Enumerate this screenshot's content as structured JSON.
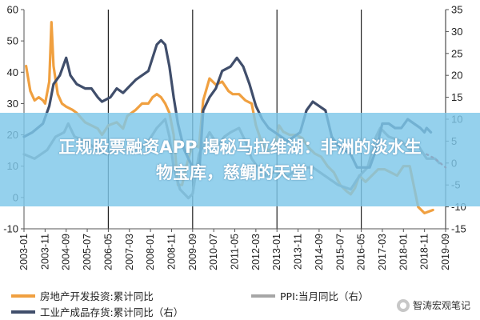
{
  "chart_data": {
    "type": "line",
    "title": "",
    "left_axis": {
      "min": -10,
      "max": 60,
      "ticks": [
        -10,
        0,
        10,
        20,
        30,
        40,
        50,
        60
      ]
    },
    "right_axis": {
      "min": -15,
      "max": 35,
      "ticks": [
        -15,
        -10,
        -5,
        0,
        5,
        10,
        15,
        20,
        25,
        30,
        35
      ]
    },
    "x_ticks": [
      "2003-01",
      "2003-11",
      "2004-09",
      "2005-07",
      "2006-05",
      "2007-03",
      "2008-01",
      "2008-11",
      "2009-09",
      "2010-07",
      "2011-05",
      "2012-03",
      "2013-01",
      "2013-11",
      "2014-09",
      "2015-07",
      "2016-05",
      "2017-03",
      "2018-01",
      "2018-11",
      "2019-09"
    ],
    "gridlines_x": [
      "2006-05",
      "2009-09",
      "2013-01",
      "2016-05",
      "2019-09"
    ],
    "series": [
      {
        "name": "房地产开发投资:累计同比",
        "axis": "left",
        "color": "#f0a040",
        "points": [
          [
            "2003-02",
            42
          ],
          [
            "2003-04",
            34
          ],
          [
            "2003-06",
            31
          ],
          [
            "2003-08",
            32
          ],
          [
            "2003-10",
            31
          ],
          [
            "2003-11",
            30
          ],
          [
            "2004-01",
            37
          ],
          [
            "2004-02",
            56
          ],
          [
            "2004-03",
            42
          ],
          [
            "2004-05",
            33
          ],
          [
            "2004-07",
            30
          ],
          [
            "2004-09",
            29
          ],
          [
            "2004-12",
            28
          ],
          [
            "2005-02",
            27
          ],
          [
            "2005-06",
            24
          ],
          [
            "2005-09",
            23
          ],
          [
            "2005-12",
            22
          ],
          [
            "2006-02",
            20
          ],
          [
            "2006-05",
            23
          ],
          [
            "2006-09",
            24
          ],
          [
            "2006-12",
            22
          ],
          [
            "2007-02",
            26
          ],
          [
            "2007-06",
            28
          ],
          [
            "2007-09",
            30
          ],
          [
            "2007-12",
            30
          ],
          [
            "2008-02",
            32
          ],
          [
            "2008-04",
            33
          ],
          [
            "2008-06",
            32
          ],
          [
            "2008-08",
            30
          ],
          [
            "2008-10",
            27
          ],
          [
            "2008-12",
            20
          ],
          [
            "2009-02",
            4
          ],
          [
            "2009-04",
            4
          ],
          [
            "2009-06",
            10
          ],
          [
            "2009-09",
            17
          ],
          [
            "2009-12",
            16
          ],
          [
            "2010-02",
            31
          ],
          [
            "2010-05",
            38
          ],
          [
            "2010-08",
            36
          ],
          [
            "2010-11",
            37
          ],
          [
            "2011-02",
            34
          ],
          [
            "2011-04",
            33
          ],
          [
            "2011-07",
            33
          ],
          [
            "2011-10",
            31
          ],
          [
            "2012-01",
            30
          ],
          [
            "2012-03",
            23
          ],
          [
            "2012-06",
            17
          ],
          [
            "2012-09",
            15
          ],
          [
            "2012-12",
            16
          ],
          [
            "2013-02",
            23
          ],
          [
            "2013-04",
            21
          ],
          [
            "2013-07",
            20
          ],
          [
            "2013-10",
            20
          ],
          [
            "2014-01",
            19
          ],
          [
            "2014-04",
            16
          ],
          [
            "2014-07",
            14
          ],
          [
            "2014-10",
            13
          ],
          [
            "2015-01",
            10
          ],
          [
            "2015-04",
            8
          ],
          [
            "2015-07",
            4
          ],
          [
            "2015-10",
            2
          ],
          [
            "2015-12",
            1
          ],
          [
            "2016-02",
            3
          ],
          [
            "2016-04",
            7
          ],
          [
            "2016-07",
            5
          ],
          [
            "2016-10",
            7
          ],
          [
            "2017-01",
            9
          ],
          [
            "2017-04",
            9
          ],
          [
            "2017-07",
            8
          ],
          [
            "2017-10",
            7
          ],
          [
            "2018-01",
            10
          ],
          [
            "2018-04",
            10
          ],
          [
            "2018-08",
            -3
          ],
          [
            "2018-11",
            -5
          ],
          [
            "2019-03",
            -4
          ]
        ]
      },
      {
        "name": "PPI:当月同比（右）",
        "axis": "right",
        "color": "#8c8c8c",
        "points": [
          [
            "2003-01",
            2
          ],
          [
            "2003-06",
            1
          ],
          [
            "2003-12",
            3
          ],
          [
            "2004-04",
            6
          ],
          [
            "2004-08",
            7
          ],
          [
            "2004-10",
            9
          ],
          [
            "2005-01",
            6
          ],
          [
            "2005-06",
            5
          ],
          [
            "2005-12",
            3
          ],
          [
            "2006-04",
            2
          ],
          [
            "2006-08",
            3
          ],
          [
            "2006-12",
            3
          ],
          [
            "2007-04",
            3
          ],
          [
            "2007-08",
            3
          ],
          [
            "2007-12",
            5
          ],
          [
            "2008-04",
            8
          ],
          [
            "2008-08",
            10
          ],
          [
            "2008-10",
            6
          ],
          [
            "2008-12",
            -1
          ],
          [
            "2009-03",
            -6
          ],
          [
            "2009-07",
            -8
          ],
          [
            "2009-09",
            -7
          ],
          [
            "2009-12",
            2
          ],
          [
            "2010-05",
            7
          ],
          [
            "2010-09",
            4
          ],
          [
            "2010-12",
            6
          ],
          [
            "2011-03",
            7
          ],
          [
            "2011-07",
            8
          ],
          [
            "2011-10",
            5
          ],
          [
            "2012-01",
            1
          ],
          [
            "2012-04",
            -1
          ],
          [
            "2012-08",
            -3
          ],
          [
            "2012-12",
            -2
          ],
          [
            "2013-06",
            -3
          ],
          [
            "2013-12",
            -1
          ],
          [
            "2014-06",
            -1
          ],
          [
            "2014-12",
            -3
          ],
          [
            "2015-06",
            -5
          ],
          [
            "2015-12",
            -6
          ],
          [
            "2016-04",
            -3
          ],
          [
            "2016-08",
            -1
          ],
          [
            "2016-12",
            6
          ],
          [
            "2017-02",
            8
          ],
          [
            "2017-06",
            6
          ],
          [
            "2017-12",
            5
          ],
          [
            "2018-04",
            3
          ],
          [
            "2018-08",
            4
          ],
          [
            "2018-12",
            1
          ],
          [
            "2019-04",
            1
          ],
          [
            "2019-06",
            0
          ]
        ]
      },
      {
        "name": "工业产成品存货:累计同比（右）",
        "axis": "right",
        "color": "#404e6b",
        "points": [
          [
            "2003-01",
            6
          ],
          [
            "2003-05",
            7
          ],
          [
            "2003-10",
            9
          ],
          [
            "2004-01",
            13
          ],
          [
            "2004-03",
            18
          ],
          [
            "2004-06",
            20
          ],
          [
            "2004-09",
            24
          ],
          [
            "2004-11",
            20
          ],
          [
            "2005-02",
            18
          ],
          [
            "2005-06",
            17
          ],
          [
            "2005-09",
            17
          ],
          [
            "2005-12",
            15
          ],
          [
            "2006-02",
            14
          ],
          [
            "2006-06",
            15
          ],
          [
            "2006-09",
            17
          ],
          [
            "2006-12",
            16
          ],
          [
            "2007-02",
            17
          ],
          [
            "2007-06",
            19
          ],
          [
            "2007-09",
            20
          ],
          [
            "2007-12",
            21
          ],
          [
            "2008-02",
            24
          ],
          [
            "2008-04",
            27
          ],
          [
            "2008-06",
            28
          ],
          [
            "2008-08",
            27
          ],
          [
            "2008-10",
            22
          ],
          [
            "2008-12",
            15
          ],
          [
            "2009-02",
            9
          ],
          [
            "2009-05",
            3
          ],
          [
            "2009-09",
            -1
          ],
          [
            "2009-12",
            -3
          ],
          [
            "2010-02",
            12
          ],
          [
            "2010-05",
            15
          ],
          [
            "2010-08",
            17
          ],
          [
            "2010-11",
            21
          ],
          [
            "2011-03",
            22
          ],
          [
            "2011-06",
            24
          ],
          [
            "2011-09",
            22
          ],
          [
            "2011-12",
            18
          ],
          [
            "2012-03",
            13
          ],
          [
            "2012-06",
            10
          ],
          [
            "2012-09",
            8
          ],
          [
            "2012-12",
            7
          ],
          [
            "2013-03",
            6
          ],
          [
            "2013-06",
            5
          ],
          [
            "2013-09",
            6
          ],
          [
            "2013-12",
            7
          ],
          [
            "2014-03",
            12
          ],
          [
            "2014-06",
            14
          ],
          [
            "2014-09",
            13
          ],
          [
            "2014-12",
            12
          ],
          [
            "2015-03",
            6
          ],
          [
            "2015-06",
            4
          ],
          [
            "2015-09",
            3
          ],
          [
            "2015-12",
            2
          ],
          [
            "2016-03",
            -1
          ],
          [
            "2016-06",
            -1
          ],
          [
            "2016-09",
            -1
          ],
          [
            "2016-12",
            3
          ],
          [
            "2017-03",
            9
          ],
          [
            "2017-06",
            9
          ],
          [
            "2017-09",
            8
          ],
          [
            "2017-12",
            8
          ],
          [
            "2018-03",
            10
          ],
          [
            "2018-06",
            9
          ],
          [
            "2018-09",
            8
          ],
          [
            "2018-11",
            7
          ],
          [
            "2018-12",
            8
          ],
          [
            "2019-02",
            7
          ]
        ]
      }
    ],
    "forecast": {
      "color": "#c03030",
      "points": [
        [
          "2018-12",
          2
        ],
        [
          "2019-04",
          1
        ],
        [
          "2019-09",
          -1
        ]
      ]
    }
  },
  "banner": {
    "line1": "正规股票融资APP 揭秘马拉维湖：非洲的淡水生",
    "line2": "物宝库，慈鲷的天堂！"
  },
  "legend": {
    "items": [
      {
        "label": "房地产开发投资:累计同比",
        "color": "#f0a040"
      },
      {
        "label": "PPI:当月同比（右）",
        "color": "#a6a6a6"
      },
      {
        "label": "工业产成品存货:累计同比（右）",
        "color": "#404e6b"
      }
    ]
  },
  "watermark": {
    "text": "智涛宏观笔记"
  }
}
